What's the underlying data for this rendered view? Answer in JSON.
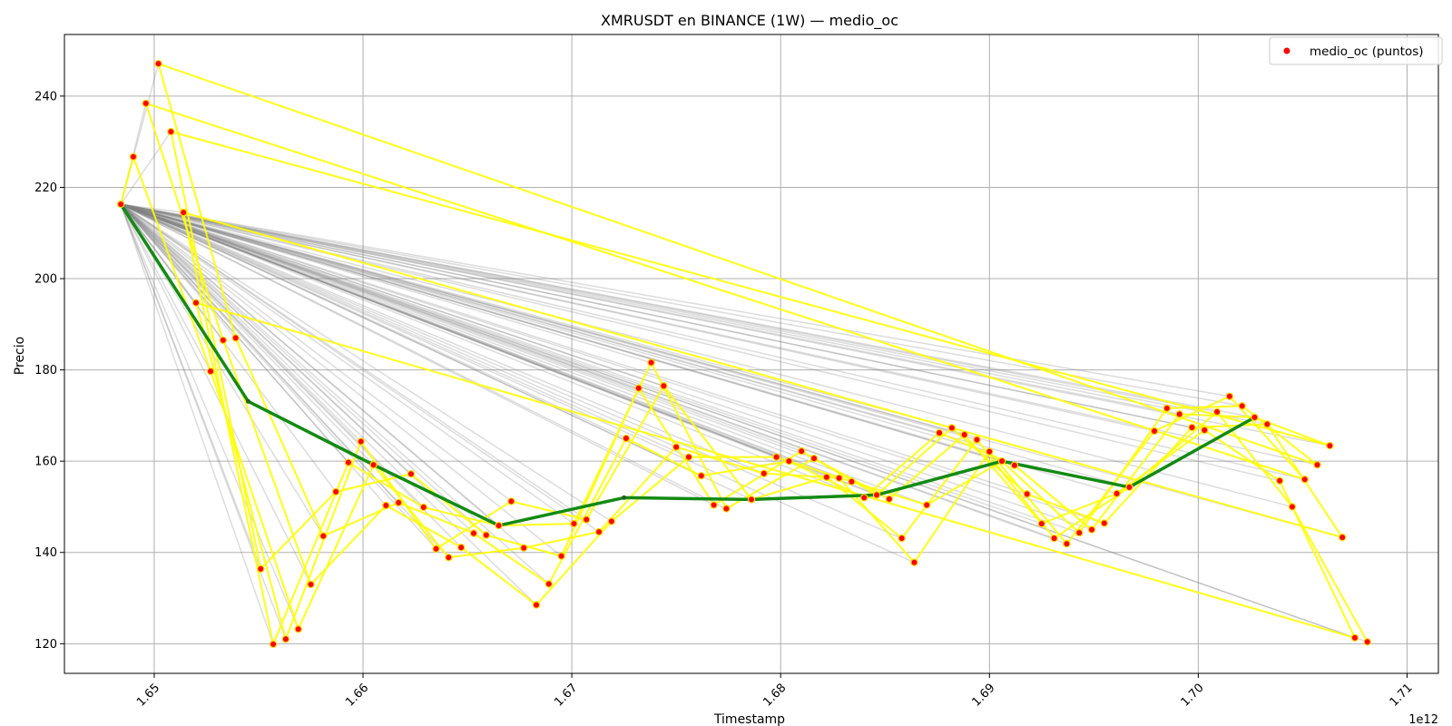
{
  "chart_data": {
    "type": "line",
    "title": "XMRUSDT en BINANCE (1W) — medio_oc",
    "xlabel": "Timestamp",
    "ylabel": "Precio",
    "x_offset_label": "1e12",
    "xlim": [
      1.6457,
      1.7115
    ],
    "ylim": [
      113.5,
      253.5
    ],
    "x_ticks": [
      1.65,
      1.66,
      1.67,
      1.68,
      1.69,
      1.7,
      1.71
    ],
    "x_tick_labels": [
      "1.65",
      "1.66",
      "1.67",
      "1.68",
      "1.69",
      "1.70",
      "1.71"
    ],
    "y_ticks": [
      120,
      140,
      160,
      180,
      200,
      220,
      240
    ],
    "y_tick_labels": [
      "120",
      "140",
      "160",
      "180",
      "200",
      "220",
      "240"
    ],
    "grid": true,
    "legend": {
      "position": "top-right",
      "entries": [
        "medio_oc (puntos)"
      ]
    },
    "colors": {
      "points": "#ff0000",
      "point_edge": "#ffd700",
      "path": "#ffff00",
      "trend": "#138a13",
      "fan": "#808080"
    },
    "series": [
      {
        "name": "medio_oc (puntos)",
        "points": [
          [
            1.6484,
            216.3
          ],
          [
            1.649,
            226.7
          ],
          [
            1.6496,
            238.4
          ],
          [
            1.6502,
            247.1
          ],
          [
            1.6508,
            232.2
          ],
          [
            1.6514,
            214.5
          ],
          [
            1.652,
            194.7
          ],
          [
            1.6527,
            179.7
          ],
          [
            1.6533,
            186.5
          ],
          [
            1.6539,
            187.0
          ],
          [
            1.6551,
            136.4
          ],
          [
            1.6557,
            119.9
          ],
          [
            1.6563,
            121.0
          ],
          [
            1.6569,
            123.2
          ],
          [
            1.6575,
            133.0
          ],
          [
            1.6581,
            143.6
          ],
          [
            1.6587,
            153.3
          ],
          [
            1.6593,
            159.7
          ],
          [
            1.6599,
            164.3
          ],
          [
            1.6605,
            159.2
          ],
          [
            1.6611,
            150.3
          ],
          [
            1.6617,
            150.9
          ],
          [
            1.6623,
            157.2
          ],
          [
            1.6629,
            149.9
          ],
          [
            1.6635,
            140.8
          ],
          [
            1.6641,
            138.9
          ],
          [
            1.6647,
            141.1
          ],
          [
            1.6653,
            144.2
          ],
          [
            1.6659,
            143.8
          ],
          [
            1.6665,
            145.9
          ],
          [
            1.6671,
            151.2
          ],
          [
            1.6677,
            141.0
          ],
          [
            1.6683,
            128.5
          ],
          [
            1.6689,
            133.1
          ],
          [
            1.6695,
            139.2
          ],
          [
            1.6701,
            146.3
          ],
          [
            1.6707,
            147.2
          ],
          [
            1.6713,
            144.5
          ],
          [
            1.6719,
            146.8
          ],
          [
            1.6726,
            165.0
          ],
          [
            1.6732,
            176.0
          ],
          [
            1.6738,
            181.6
          ],
          [
            1.6744,
            176.5
          ],
          [
            1.675,
            163.1
          ],
          [
            1.6756,
            160.9
          ],
          [
            1.6762,
            156.8
          ],
          [
            1.6768,
            150.4
          ],
          [
            1.6774,
            149.6
          ],
          [
            1.6786,
            151.6
          ],
          [
            1.6792,
            157.3
          ],
          [
            1.6798,
            160.9
          ],
          [
            1.6804,
            160.0
          ],
          [
            1.681,
            162.2
          ],
          [
            1.6816,
            160.6
          ],
          [
            1.6822,
            156.5
          ],
          [
            1.6828,
            156.3
          ],
          [
            1.6834,
            155.5
          ],
          [
            1.684,
            152.0
          ],
          [
            1.6846,
            152.6
          ],
          [
            1.6852,
            151.7
          ],
          [
            1.6858,
            143.1
          ],
          [
            1.6864,
            137.8
          ],
          [
            1.687,
            150.4
          ],
          [
            1.6876,
            166.2
          ],
          [
            1.6882,
            167.3
          ],
          [
            1.6888,
            165.8
          ],
          [
            1.6894,
            164.7
          ],
          [
            1.69,
            162.1
          ],
          [
            1.6906,
            160.0
          ],
          [
            1.6912,
            159.1
          ],
          [
            1.6918,
            152.8
          ],
          [
            1.6925,
            146.3
          ],
          [
            1.6931,
            143.1
          ],
          [
            1.6937,
            141.9
          ],
          [
            1.6943,
            144.3
          ],
          [
            1.6949,
            145.0
          ],
          [
            1.6955,
            146.4
          ],
          [
            1.6961,
            152.9
          ],
          [
            1.6967,
            154.3
          ],
          [
            1.6979,
            166.6
          ],
          [
            1.6985,
            171.6
          ],
          [
            1.6991,
            170.3
          ],
          [
            1.6997,
            167.4
          ],
          [
            1.7003,
            166.8
          ],
          [
            1.7009,
            170.8
          ],
          [
            1.7015,
            174.2
          ],
          [
            1.7021,
            172.1
          ],
          [
            1.7027,
            169.6
          ],
          [
            1.7033,
            168.1
          ],
          [
            1.7039,
            155.7
          ],
          [
            1.7045,
            150.0
          ],
          [
            1.7051,
            156.0
          ],
          [
            1.7057,
            159.2
          ],
          [
            1.7063,
            163.4
          ],
          [
            1.7069,
            143.3
          ],
          [
            1.7075,
            121.3
          ],
          [
            1.7081,
            120.4
          ]
        ]
      },
      {
        "name": "",
        "points": [
          [
            1.6484,
            216.3
          ],
          [
            1.6545,
            173.1
          ],
          [
            1.6605,
            159.2
          ],
          [
            1.6665,
            145.9
          ],
          [
            1.6725,
            152.0
          ],
          [
            1.6786,
            151.6
          ],
          [
            1.6846,
            152.6
          ],
          [
            1.6906,
            160.0
          ],
          [
            1.6967,
            154.3
          ],
          [
            1.7027,
            169.6
          ]
        ]
      }
    ]
  }
}
